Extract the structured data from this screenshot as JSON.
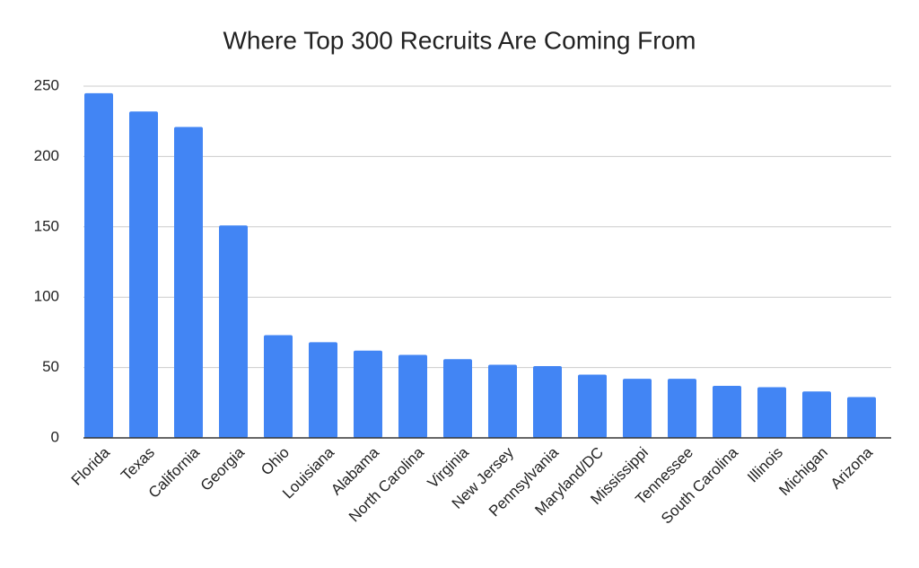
{
  "chart_data": {
    "type": "bar",
    "title": "Where Top 300 Recruits Are Coming From",
    "categories": [
      "Florida",
      "Texas",
      "California",
      "Georgia",
      "Ohio",
      "Louisiana",
      "Alabama",
      "North Carolina",
      "Virginia",
      "New Jersey",
      "Pennsylvania",
      "Maryland/DC",
      "Mississippi",
      "Tennessee",
      "South Carolina",
      "Illinois",
      "Michigan",
      "Arizona"
    ],
    "values": [
      245,
      232,
      221,
      151,
      73,
      68,
      62,
      59,
      56,
      52,
      51,
      45,
      42,
      42,
      37,
      36,
      33,
      29
    ],
    "color": "#4285f4",
    "ylim": [
      0,
      250
    ],
    "yticks": [
      0,
      50,
      100,
      150,
      200,
      250
    ],
    "grid": true
  }
}
